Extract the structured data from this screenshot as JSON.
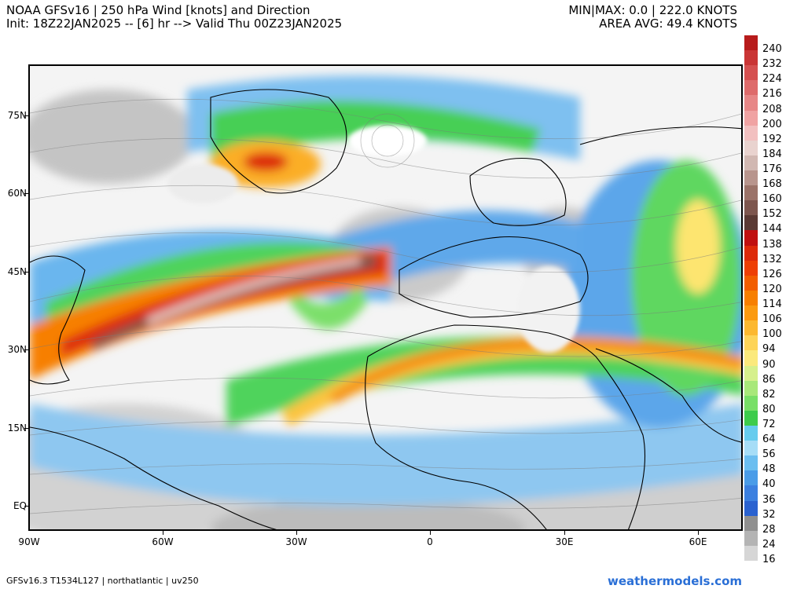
{
  "header": {
    "title_line1": "NOAA GFSv16 | 250 hPa Wind [knots] and Direction",
    "title_line2": "Init: 18Z22JAN2025 -- [6] hr --> Valid Thu 00Z23JAN2025",
    "stats_line1": "MIN|MAX: 0.0 | 222.0 KNOTS",
    "stats_line2": "AREA AVG: 49.4 KNOTS"
  },
  "axes": {
    "lat_labels": [
      "75N",
      "60N",
      "45N",
      "30N",
      "15N",
      "EQ"
    ],
    "lon_labels": [
      "90W",
      "60W",
      "30W",
      "0",
      "30E",
      "60E"
    ]
  },
  "colorbar": {
    "levels": [
      "240",
      "232",
      "224",
      "216",
      "208",
      "200",
      "192",
      "184",
      "176",
      "168",
      "160",
      "152",
      "144",
      "138",
      "132",
      "126",
      "120",
      "114",
      "106",
      "100",
      "94",
      "90",
      "86",
      "82",
      "80",
      "72",
      "64",
      "56",
      "48",
      "40",
      "36",
      "32",
      "28",
      "24",
      "16"
    ],
    "colors": [
      "#b71b1b",
      "#c93535",
      "#d55050",
      "#de6b6b",
      "#e78787",
      "#f0a3a3",
      "#f2c0c0",
      "#e9d3cf",
      "#d1b8b2",
      "#b8958d",
      "#9b7369",
      "#7d564e",
      "#5a3a34",
      "#c01010",
      "#dd2a0a",
      "#ee3f05",
      "#f25e00",
      "#f77f00",
      "#fb9a10",
      "#fcb830",
      "#fdd459",
      "#fbe97c",
      "#d6f08c",
      "#a8e87a",
      "#78df67",
      "#3dcc4c",
      "#66ccee",
      "#a6ddf7",
      "#6bbef0",
      "#4a9ce8",
      "#3c80e0",
      "#2a62d0",
      "#909090",
      "#b4b4b4",
      "#d6d6d6"
    ]
  },
  "footer": {
    "left": "GFSv16.3 T1534L127 | northatlantic | uv250",
    "right": "weathermodels.com"
  }
}
